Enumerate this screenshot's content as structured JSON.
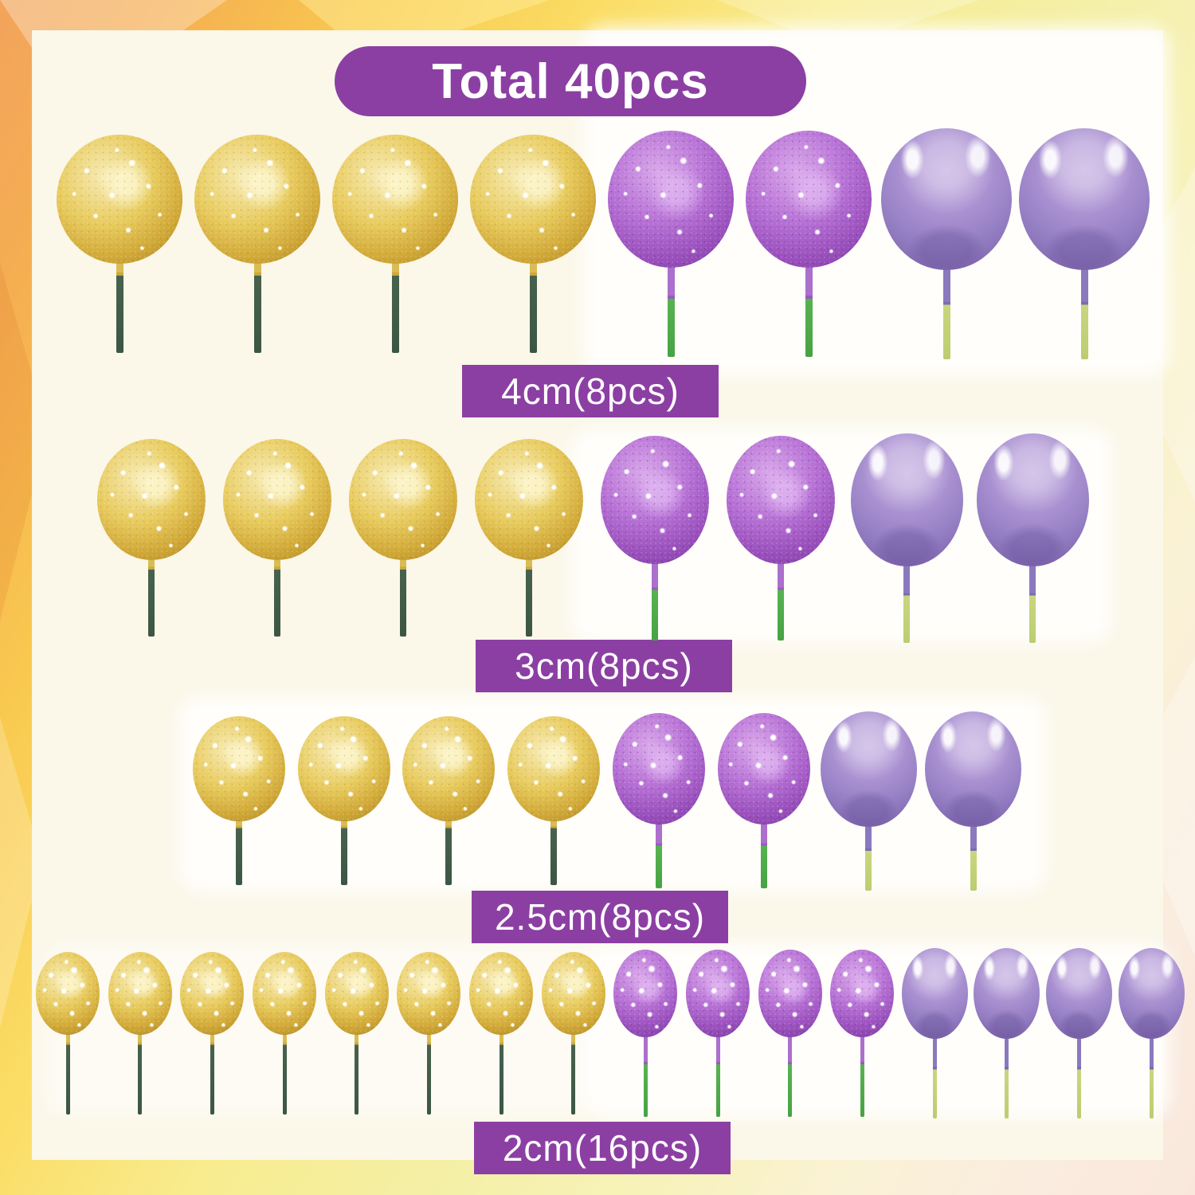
{
  "title": "Total 40pcs",
  "total_pieces": 40,
  "rows": [
    {
      "label": "4cm(8pcs)",
      "size": "4cm",
      "pieces": 8,
      "balls": [
        "gold-glitter",
        "gold-glitter",
        "gold-glitter",
        "gold-glitter",
        "purple-glitter",
        "purple-glitter",
        "purple-plain",
        "purple-plain"
      ]
    },
    {
      "label": "3cm(8pcs)",
      "size": "3cm",
      "pieces": 8,
      "balls": [
        "gold-glitter",
        "gold-glitter",
        "gold-glitter",
        "gold-glitter",
        "purple-glitter",
        "purple-glitter",
        "purple-plain",
        "purple-plain"
      ]
    },
    {
      "label": "2.5cm(8pcs)",
      "size": "2.5cm",
      "pieces": 8,
      "balls": [
        "gold-glitter",
        "gold-glitter",
        "gold-glitter",
        "gold-glitter",
        "purple-glitter",
        "purple-glitter",
        "purple-plain",
        "purple-plain"
      ]
    },
    {
      "label": "2cm(16pcs)",
      "size": "2cm",
      "pieces": 16,
      "balls": [
        "gold-glitter",
        "gold-glitter",
        "gold-glitter",
        "gold-glitter",
        "gold-glitter",
        "gold-glitter",
        "gold-glitter",
        "gold-glitter",
        "purple-glitter",
        "purple-glitter",
        "purple-glitter",
        "purple-glitter",
        "purple-plain",
        "purple-plain",
        "purple-plain",
        "purple-plain"
      ]
    }
  ],
  "ball_types": {
    "gold-glitter": "gold glitter ball",
    "purple-glitter": "purple glitter ball",
    "purple-plain": "plain purple ball"
  },
  "colors": {
    "banner_purple": "#8C3FA3",
    "panel_cream": "#FBF7E9",
    "frame_orange": "#F2A45B",
    "frame_yellow": "#F4EFA3",
    "gold_glitter": "#D4AC3A",
    "purple_glitter": "#A25BC6",
    "purple_plain": "#9A82C6",
    "stick_dark_green": "#40604C",
    "stick_bright_green": "#4CAF50",
    "stick_yellow_green": "#C5D37E"
  }
}
